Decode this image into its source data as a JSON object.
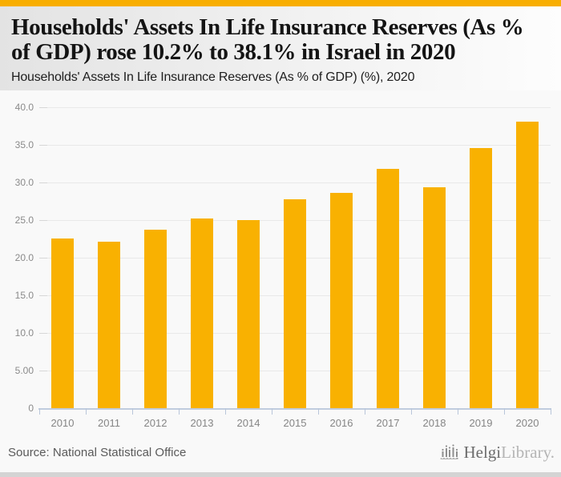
{
  "colors": {
    "accent": "#f8ae01",
    "bar": "#f9b101",
    "axis": "#b9c6da",
    "gridline": "#e9e9e9"
  },
  "header": {
    "title": "Households' Assets In Life Insurance Reserves (As % of GDP) rose 10.2% to 38.1% in Israel in 2020",
    "subtitle": "Households' Assets In Life Insurance Reserves (As % of GDP) (%), 2020"
  },
  "chart_data": {
    "type": "bar",
    "title": "Households' Assets In Life Insurance Reserves (As % of GDP) (%), 2020",
    "categories": [
      "2010",
      "2011",
      "2012",
      "2013",
      "2014",
      "2015",
      "2016",
      "2017",
      "2018",
      "2019",
      "2020"
    ],
    "values": [
      22.6,
      22.1,
      23.7,
      25.2,
      25.0,
      27.8,
      28.6,
      31.8,
      29.4,
      34.6,
      38.1
    ],
    "unit": "%",
    "xlabel": "",
    "ylabel": "",
    "ylim": [
      0,
      40
    ],
    "ytick_values": [
      0,
      5,
      10,
      15,
      20,
      25,
      30,
      35,
      40
    ],
    "ytick_labels": [
      "0",
      "5.00",
      "10.0",
      "15.0",
      "20.0",
      "25.0",
      "30.0",
      "35.0",
      "40.0"
    ],
    "grid": true,
    "legend_position": "none",
    "bar_color": "#f9b101"
  },
  "footer": {
    "source": "Source: National Statistical Office",
    "logo": {
      "icon": "helgi-logo-icon",
      "brand_primary": "Helgi",
      "brand_secondary": "Library."
    }
  }
}
